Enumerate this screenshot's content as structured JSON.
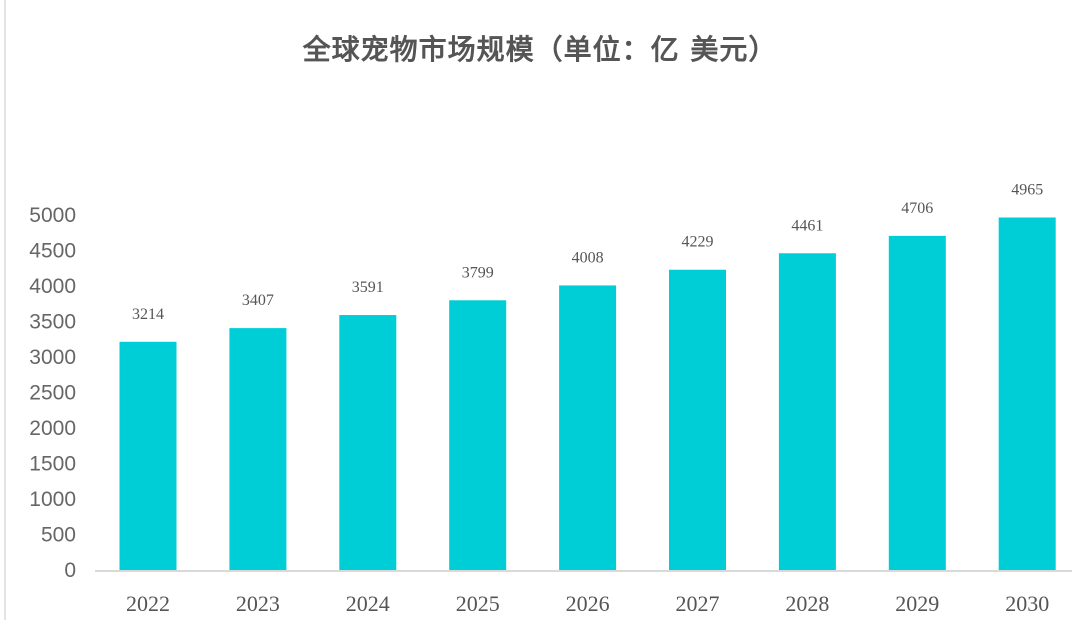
{
  "chart_data": {
    "type": "bar",
    "title": "全球宠物市场规模（单位：亿 美元）",
    "xlabel": "",
    "ylabel": "",
    "categories": [
      "2022",
      "2023",
      "2024",
      "2025",
      "2026",
      "2027",
      "2028",
      "2029",
      "2030"
    ],
    "values": [
      3214,
      3407,
      3591,
      3799,
      4008,
      4229,
      4461,
      4706,
      4965
    ],
    "ylim": [
      0,
      5000
    ],
    "yticks": [
      0,
      500,
      1000,
      1500,
      2000,
      2500,
      3000,
      3500,
      4000,
      4500,
      5000
    ],
    "grid": false,
    "legend": "none",
    "data_labels": true,
    "bar_color": "#00CED6"
  }
}
